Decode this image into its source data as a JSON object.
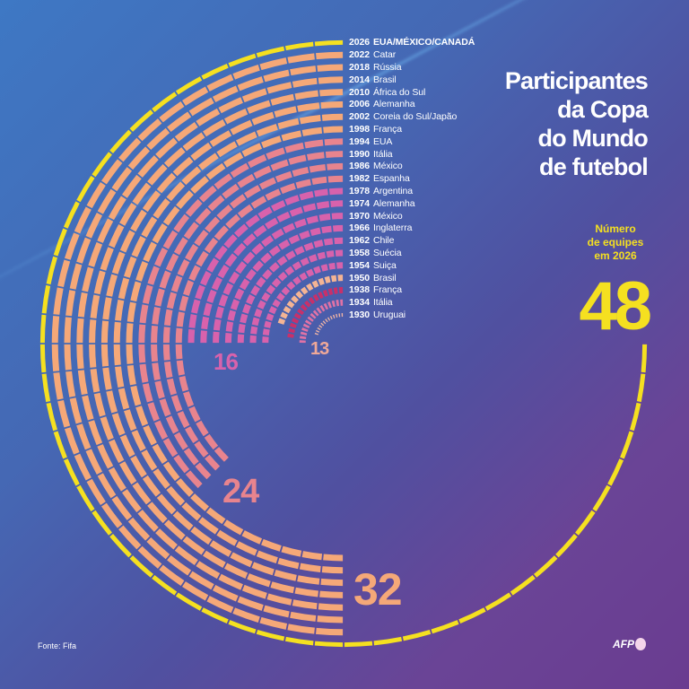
{
  "chart_data": {
    "type": "radial-bar",
    "title": "Participantes da Copa do Mundo de futebol",
    "editions": [
      {
        "year": "1930",
        "host": "Uruguai",
        "teams": 13,
        "color": "#f0b4a4"
      },
      {
        "year": "1934",
        "host": "Itália",
        "teams": 16,
        "color": "#e072a6"
      },
      {
        "year": "1938",
        "host": "França",
        "teams": 15,
        "color": "#c8306a"
      },
      {
        "year": "1950",
        "host": "Brasil",
        "teams": 13,
        "color": "#f4b494"
      },
      {
        "year": "1954",
        "host": "Suiça",
        "teams": 16,
        "color": "#d862ac"
      },
      {
        "year": "1958",
        "host": "Suécia",
        "teams": 16,
        "color": "#d862ac"
      },
      {
        "year": "1962",
        "host": "Chile",
        "teams": 16,
        "color": "#d862ac"
      },
      {
        "year": "1966",
        "host": "Inglaterra",
        "teams": 16,
        "color": "#d862ac"
      },
      {
        "year": "1970",
        "host": "México",
        "teams": 16,
        "color": "#d862ac"
      },
      {
        "year": "1974",
        "host": "Alemanha",
        "teams": 16,
        "color": "#d862ac"
      },
      {
        "year": "1978",
        "host": "Argentina",
        "teams": 16,
        "color": "#d862ac"
      },
      {
        "year": "1982",
        "host": "Espanha",
        "teams": 24,
        "color": "#e8848e"
      },
      {
        "year": "1986",
        "host": "México",
        "teams": 24,
        "color": "#e8848e"
      },
      {
        "year": "1990",
        "host": "Itália",
        "teams": 24,
        "color": "#e8848e"
      },
      {
        "year": "1994",
        "host": "EUA",
        "teams": 24,
        "color": "#e8848e"
      },
      {
        "year": "1998",
        "host": "França",
        "teams": 32,
        "color": "#f5a878"
      },
      {
        "year": "2002",
        "host": "Coreia do Sul/Japão",
        "teams": 32,
        "color": "#f5a878"
      },
      {
        "year": "2006",
        "host": "Alemanha",
        "teams": 32,
        "color": "#f5a878"
      },
      {
        "year": "2010",
        "host": "África do Sul",
        "teams": 32,
        "color": "#f5a878"
      },
      {
        "year": "2014",
        "host": "Brasil",
        "teams": 32,
        "color": "#f5a878"
      },
      {
        "year": "2018",
        "host": "Rússia",
        "teams": 32,
        "color": "#f5a878"
      },
      {
        "year": "2022",
        "host": "Catar",
        "teams": 32,
        "color": "#f5a878"
      },
      {
        "year": "2026",
        "host": "EUA/MÉXICO/CANADÁ",
        "teams": 48,
        "color": "#f5e020"
      }
    ],
    "annotations": [
      {
        "text": "13",
        "color": "#f0a898"
      },
      {
        "text": "16",
        "color": "#d862ac"
      },
      {
        "text": "24",
        "color": "#e8848e"
      },
      {
        "text": "32",
        "color": "#f5a878"
      }
    ]
  },
  "title_lines": [
    "Participantes",
    "da Copa",
    "do Mundo",
    "de futebol"
  ],
  "subtitle_lines": [
    "Número",
    "de equipes",
    "em 2026"
  ],
  "big_number": "48",
  "source": "Fonte: Fifa",
  "logo": "AFP"
}
